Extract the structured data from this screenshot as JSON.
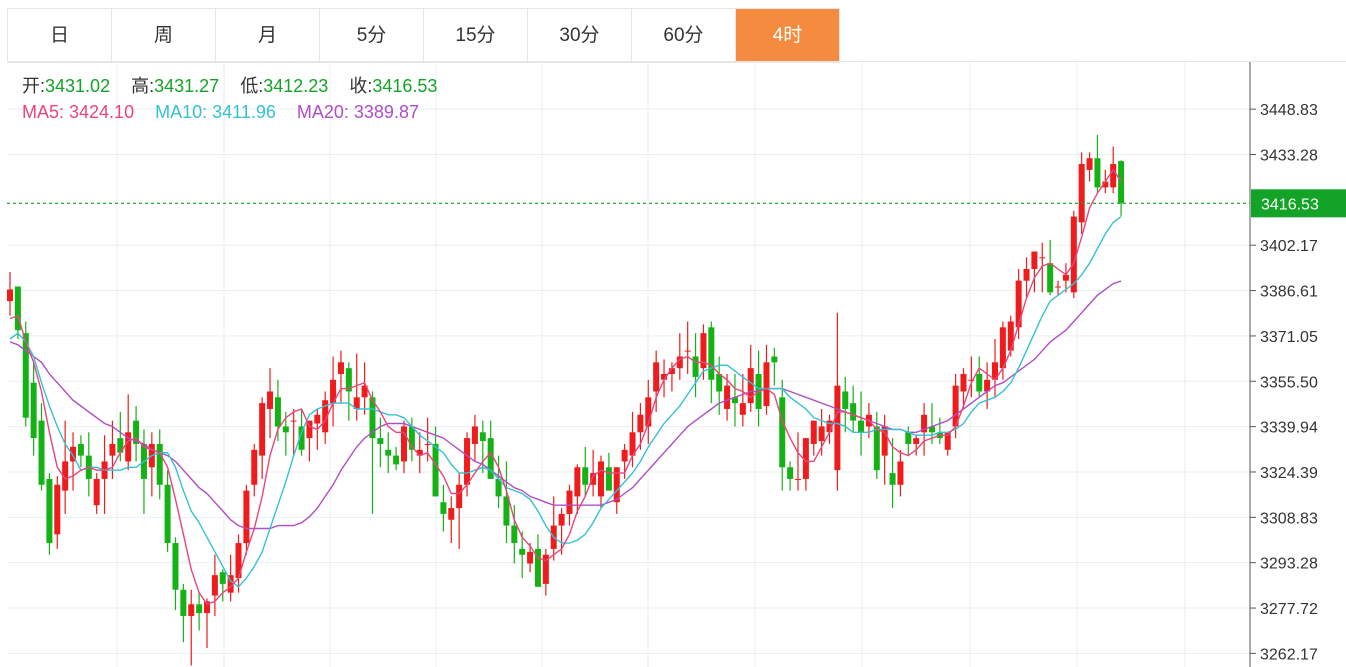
{
  "tabs": [
    {
      "label": "日",
      "active": false
    },
    {
      "label": "周",
      "active": false
    },
    {
      "label": "月",
      "active": false
    },
    {
      "label": "5分",
      "active": false
    },
    {
      "label": "15分",
      "active": false
    },
    {
      "label": "30分",
      "active": false
    },
    {
      "label": "60分",
      "active": false
    },
    {
      "label": "4时",
      "active": true
    }
  ],
  "ohlc_info": {
    "open_label": "开:",
    "open": "3431.02",
    "high_label": "高:",
    "high": "3431.27",
    "low_label": "低:",
    "low": "3412.23",
    "close_label": "收:",
    "close": "3416.53"
  },
  "ma_info": {
    "ma5": "MA5: 3424.10",
    "ma10": "MA10: 3411.96",
    "ma20": "MA20: 3389.87"
  },
  "colors": {
    "up": "#ee1c1c",
    "down": "#15b215",
    "ma5": "#e8467c",
    "ma10": "#36c1d3",
    "ma20": "#b04ec5",
    "accent": "#f48b3f",
    "current_price": "#13a327"
  },
  "chart_data": {
    "type": "candlestick",
    "y_ticks": [
      "3448.83",
      "3433.28",
      "3416.53",
      "3402.17",
      "3386.61",
      "3371.05",
      "3355.50",
      "3339.94",
      "3324.39",
      "3308.83",
      "3293.28",
      "3277.72",
      "3262.17"
    ],
    "y_tick_values": [
      3448.83,
      3433.28,
      3402.17,
      3386.61,
      3371.05,
      3355.5,
      3339.94,
      3324.39,
      3308.83,
      3293.28,
      3277.72,
      3262.17
    ],
    "ylim": [
      3257.5,
      3465.0
    ],
    "current_price": 3416.53,
    "current_price_label": "3416.53",
    "candles": [
      [
        3383,
        3393,
        3378,
        3387
      ],
      [
        3388,
        3388,
        3370,
        3373
      ],
      [
        3372,
        3376,
        3340,
        3343
      ],
      [
        3355,
        3362,
        3330,
        3336
      ],
      [
        3342,
        3348,
        3318,
        3320
      ],
      [
        3322,
        3324,
        3296,
        3300
      ],
      [
        3303,
        3323,
        3298,
        3320
      ],
      [
        3318,
        3342,
        3310,
        3328
      ],
      [
        3328,
        3338,
        3318,
        3333
      ],
      [
        3334,
        3337,
        3326,
        3330
      ],
      [
        3330,
        3338,
        3316,
        3322
      ],
      [
        3313,
        3324,
        3310,
        3322
      ],
      [
        3322,
        3337,
        3310,
        3328
      ],
      [
        3330,
        3342,
        3322,
        3334
      ],
      [
        3336,
        3345,
        3328,
        3331
      ],
      [
        3328,
        3351,
        3325,
        3338
      ],
      [
        3342,
        3347,
        3328,
        3334
      ],
      [
        3334,
        3339,
        3310,
        3322
      ],
      [
        3326,
        3338,
        3316,
        3334
      ],
      [
        3334,
        3339,
        3315,
        3320
      ],
      [
        3320,
        3325,
        3297,
        3300
      ],
      [
        3300,
        3302,
        3277,
        3284
      ],
      [
        3284,
        3286,
        3266,
        3275
      ],
      [
        3275,
        3284,
        3258,
        3279
      ],
      [
        3279,
        3283,
        3270,
        3276
      ],
      [
        3276,
        3281,
        3264,
        3280
      ],
      [
        3282,
        3296,
        3275,
        3289
      ],
      [
        3290,
        3291,
        3280,
        3286
      ],
      [
        3283,
        3296,
        3280,
        3289
      ],
      [
        3288,
        3303,
        3283,
        3300
      ],
      [
        3300,
        3320,
        3296,
        3318
      ],
      [
        3320,
        3334,
        3316,
        3332
      ],
      [
        3330,
        3350,
        3322,
        3348
      ],
      [
        3346,
        3360,
        3336,
        3352
      ],
      [
        3350,
        3356,
        3335,
        3340
      ],
      [
        3340,
        3345,
        3330,
        3338
      ],
      [
        3342,
        3346,
        3330,
        3342
      ],
      [
        3340,
        3346,
        3330,
        3332
      ],
      [
        3336,
        3342,
        3328,
        3342
      ],
      [
        3341,
        3346,
        3332,
        3344
      ],
      [
        3338,
        3352,
        3334,
        3349
      ],
      [
        3348,
        3364,
        3340,
        3356
      ],
      [
        3358,
        3366,
        3348,
        3362
      ],
      [
        3360,
        3362,
        3342,
        3352
      ],
      [
        3346,
        3365,
        3342,
        3350
      ],
      [
        3350,
        3362,
        3344,
        3354
      ],
      [
        3350,
        3352,
        3310,
        3336
      ],
      [
        3336,
        3343,
        3326,
        3334
      ],
      [
        3332,
        3338,
        3324,
        3330
      ],
      [
        3330,
        3333,
        3325,
        3327
      ],
      [
        3328,
        3342,
        3324,
        3340
      ],
      [
        3340,
        3343,
        3328,
        3332
      ],
      [
        3330,
        3338,
        3324,
        3332
      ],
      [
        3334,
        3343,
        3328,
        3334
      ],
      [
        3334,
        3340,
        3316,
        3316
      ],
      [
        3314,
        3320,
        3304,
        3310
      ],
      [
        3308,
        3316,
        3300,
        3312
      ],
      [
        3312,
        3324,
        3298,
        3320
      ],
      [
        3320,
        3338,
        3316,
        3336
      ],
      [
        3334,
        3344,
        3328,
        3340
      ],
      [
        3338,
        3342,
        3324,
        3335
      ],
      [
        3336,
        3342,
        3324,
        3322
      ],
      [
        3322,
        3330,
        3312,
        3316
      ],
      [
        3316,
        3328,
        3300,
        3306
      ],
      [
        3306,
        3313,
        3293,
        3300
      ],
      [
        3298,
        3304,
        3288,
        3296
      ],
      [
        3293,
        3300,
        3290,
        3297
      ],
      [
        3298,
        3303,
        3285,
        3285
      ],
      [
        3286,
        3298,
        3282,
        3296
      ],
      [
        3298,
        3316,
        3294,
        3306
      ],
      [
        3306,
        3312,
        3296,
        3310
      ],
      [
        3310,
        3320,
        3306,
        3318
      ],
      [
        3316,
        3327,
        3310,
        3326
      ],
      [
        3326,
        3333,
        3316,
        3320
      ],
      [
        3320,
        3332,
        3316,
        3324
      ],
      [
        3316,
        3330,
        3312,
        3328
      ],
      [
        3326,
        3331,
        3318,
        3318
      ],
      [
        3314,
        3326,
        3310,
        3326
      ],
      [
        3328,
        3334,
        3322,
        3332
      ],
      [
        3330,
        3345,
        3326,
        3338
      ],
      [
        3338,
        3348,
        3332,
        3344
      ],
      [
        3340,
        3356,
        3334,
        3350
      ],
      [
        3352,
        3366,
        3345,
        3362
      ],
      [
        3356,
        3363,
        3350,
        3358
      ],
      [
        3358,
        3362,
        3352,
        3360
      ],
      [
        3360,
        3372,
        3356,
        3364
      ],
      [
        3366,
        3376,
        3358,
        3366
      ],
      [
        3364,
        3372,
        3350,
        3357
      ],
      [
        3360,
        3375,
        3356,
        3372
      ],
      [
        3374,
        3376,
        3348,
        3356
      ],
      [
        3358,
        3364,
        3344,
        3352
      ],
      [
        3346,
        3358,
        3342,
        3354
      ],
      [
        3350,
        3358,
        3340,
        3348
      ],
      [
        3344,
        3358,
        3340,
        3348
      ],
      [
        3348,
        3368,
        3345,
        3360
      ],
      [
        3358,
        3366,
        3340,
        3346
      ],
      [
        3347,
        3368,
        3344,
        3362
      ],
      [
        3364,
        3367,
        3354,
        3362
      ],
      [
        3350,
        3356,
        3318,
        3326
      ],
      [
        3326,
        3328,
        3318,
        3322
      ],
      [
        3322,
        3338,
        3318,
        3322
      ],
      [
        3322,
        3336,
        3318,
        3336
      ],
      [
        3334,
        3342,
        3330,
        3342
      ],
      [
        3335,
        3346,
        3330,
        3340
      ],
      [
        3338,
        3344,
        3334,
        3342
      ],
      [
        3325,
        3379,
        3318,
        3354
      ],
      [
        3352,
        3357,
        3338,
        3346
      ],
      [
        3348,
        3354,
        3338,
        3342
      ],
      [
        3342,
        3352,
        3330,
        3338
      ],
      [
        3340,
        3348,
        3336,
        3344
      ],
      [
        3340,
        3345,
        3322,
        3325
      ],
      [
        3330,
        3344,
        3320,
        3340
      ],
      [
        3324,
        3336,
        3312,
        3320
      ],
      [
        3320,
        3332,
        3316,
        3328
      ],
      [
        3338,
        3340,
        3330,
        3334
      ],
      [
        3334,
        3337,
        3330,
        3336
      ],
      [
        3338,
        3348,
        3330,
        3344
      ],
      [
        3340,
        3348,
        3334,
        3338
      ],
      [
        3338,
        3343,
        3334,
        3336
      ],
      [
        3332,
        3336,
        3330,
        3338
      ],
      [
        3340,
        3358,
        3336,
        3354
      ],
      [
        3352,
        3360,
        3346,
        3358
      ],
      [
        3356,
        3364,
        3350,
        3356
      ],
      [
        3358,
        3364,
        3350,
        3352
      ],
      [
        3352,
        3362,
        3346,
        3356
      ],
      [
        3356,
        3370,
        3350,
        3362
      ],
      [
        3360,
        3376,
        3356,
        3374
      ],
      [
        3366,
        3378,
        3364,
        3376
      ],
      [
        3374,
        3394,
        3370,
        3390
      ],
      [
        3390,
        3398,
        3384,
        3394
      ],
      [
        3394,
        3400,
        3386,
        3400
      ],
      [
        3398,
        3403,
        3386,
        3398
      ],
      [
        3396,
        3404,
        3385,
        3386
      ],
      [
        3388,
        3390,
        3385,
        3388
      ],
      [
        3390,
        3396,
        3386,
        3392
      ],
      [
        3386,
        3414,
        3384,
        3412
      ],
      [
        3410,
        3434,
        3406,
        3430
      ],
      [
        3428,
        3434,
        3424,
        3432
      ],
      [
        3432,
        3440,
        3420,
        3422
      ],
      [
        3422,
        3428,
        3420,
        3424
      ],
      [
        3422,
        3436,
        3420,
        3430
      ],
      [
        3431.02,
        3431.27,
        3412.23,
        3416.53
      ]
    ],
    "ma5": [
      3377,
      3378,
      3369,
      3362,
      3352,
      3338,
      3326,
      3322,
      3323,
      3325,
      3326,
      3325,
      3325,
      3326,
      3331,
      3335,
      3336,
      3333,
      3332,
      3331,
      3326,
      3315,
      3303,
      3291,
      3283,
      3279,
      3280,
      3283,
      3285,
      3288,
      3297,
      3305,
      3316,
      3330,
      3339,
      3343,
      3345,
      3346,
      3340,
      3339,
      3342,
      3348,
      3353,
      3353,
      3354,
      3355,
      3349,
      3345,
      3340,
      3338,
      3338,
      3333,
      3330,
      3331,
      3327,
      3323,
      3317,
      3317,
      3320,
      3324,
      3328,
      3331,
      3326,
      3318,
      3308,
      3302,
      3299,
      3295,
      3294,
      3296,
      3298,
      3303,
      3311,
      3316,
      3323,
      3325,
      3324,
      3324,
      3324,
      3330,
      3334,
      3341,
      3350,
      3356,
      3360,
      3363,
      3364,
      3362,
      3362,
      3361,
      3358,
      3356,
      3353,
      3352,
      3350,
      3352,
      3353,
      3351,
      3342,
      3336,
      3331,
      3328,
      3328,
      3333,
      3338,
      3345,
      3345,
      3344,
      3343,
      3342,
      3339,
      3338,
      3333,
      3331,
      3330,
      3332,
      3335,
      3336,
      3337,
      3337,
      3340,
      3347,
      3355,
      3360,
      3358,
      3356,
      3360,
      3366,
      3375,
      3384,
      3391,
      3395,
      3396,
      3394,
      3392,
      3396,
      3405,
      3415,
      3420,
      3424,
      3428,
      3424.1
    ],
    "ma10": [
      3370,
      3372,
      3369,
      3364,
      3355,
      3347,
      3340,
      3334,
      3330,
      3325,
      3326,
      3326,
      3325,
      3325,
      3325,
      3326,
      3326,
      3328,
      3330,
      3331,
      3331,
      3326,
      3318,
      3311,
      3307,
      3302,
      3297,
      3292,
      3287,
      3285,
      3288,
      3292,
      3297,
      3305,
      3313,
      3321,
      3330,
      3338,
      3344,
      3346,
      3347,
      3348,
      3348,
      3348,
      3346,
      3346,
      3346,
      3345,
      3344,
      3344,
      3343,
      3340,
      3337,
      3335,
      3333,
      3331,
      3327,
      3324,
      3324,
      3325,
      3326,
      3325,
      3322,
      3319,
      3318,
      3317,
      3315,
      3311,
      3306,
      3302,
      3300,
      3300,
      3301,
      3303,
      3307,
      3312,
      3315,
      3318,
      3321,
      3324,
      3328,
      3333,
      3337,
      3341,
      3344,
      3347,
      3351,
      3355,
      3359,
      3360,
      3361,
      3361,
      3359,
      3357,
      3355,
      3353,
      3353,
      3353,
      3353,
      3350,
      3348,
      3346,
      3343,
      3342,
      3341,
      3341,
      3340,
      3338,
      3338,
      3338,
      3339,
      3339,
      3339,
      3339,
      3338,
      3337,
      3337,
      3337,
      3338,
      3338,
      3339,
      3341,
      3345,
      3348,
      3349,
      3350,
      3352,
      3355,
      3360,
      3366,
      3372,
      3378,
      3383,
      3385,
      3387,
      3389,
      3392,
      3396,
      3401,
      3406,
      3410,
      3411.96
    ],
    "ma20": [
      3369,
      3368,
      3366,
      3364,
      3362,
      3358,
      3355,
      3352,
      3349,
      3347,
      3345,
      3343,
      3341,
      3340,
      3338,
      3336,
      3335,
      3334,
      3332,
      3331,
      3330,
      3328,
      3325,
      3322,
      3319,
      3317,
      3314,
      3311,
      3308,
      3306,
      3305,
      3305,
      3305,
      3305,
      3306,
      3306,
      3306,
      3307,
      3309,
      3312,
      3316,
      3320,
      3325,
      3329,
      3333,
      3336,
      3338,
      3340,
      3341,
      3341,
      3341,
      3340,
      3339,
      3338,
      3337,
      3336,
      3334,
      3332,
      3330,
      3328,
      3327,
      3325,
      3323,
      3321,
      3319,
      3318,
      3316,
      3315,
      3314,
      3313,
      3313,
      3313,
      3313,
      3313,
      3313,
      3313,
      3314,
      3315,
      3317,
      3319,
      3322,
      3325,
      3328,
      3331,
      3334,
      3337,
      3340,
      3342,
      3344,
      3346,
      3348,
      3349,
      3350,
      3351,
      3352,
      3352,
      3353,
      3353,
      3353,
      3352,
      3351,
      3350,
      3349,
      3348,
      3347,
      3346,
      3345,
      3344,
      3343,
      3342,
      3341,
      3340,
      3339,
      3339,
      3338,
      3338,
      3339,
      3340,
      3341,
      3342,
      3344,
      3346,
      3348,
      3350,
      3352,
      3354,
      3355,
      3357,
      3359,
      3361,
      3363,
      3366,
      3369,
      3371,
      3373,
      3376,
      3379,
      3382,
      3385,
      3387,
      3389,
      3389.87
    ]
  }
}
